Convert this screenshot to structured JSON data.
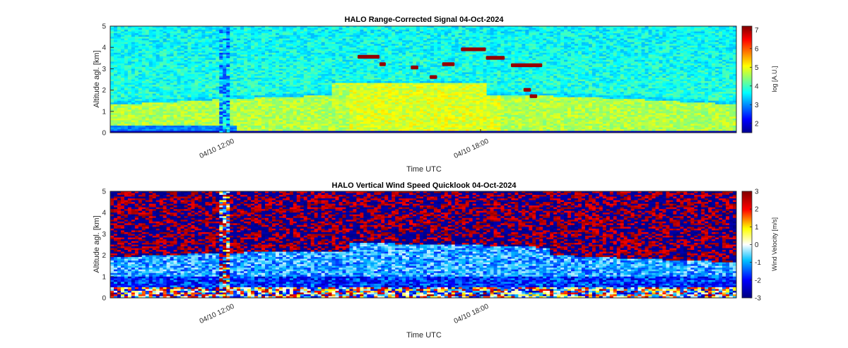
{
  "chart_data": [
    {
      "type": "heatmap",
      "title": "HALO Range-Corrected Signal 04-Oct-2024",
      "xlabel": "Time UTC",
      "ylabel": "Altitude agl. [km]",
      "ylim": [
        0,
        5
      ],
      "y_ticks": [
        "0",
        "1",
        "2",
        "3",
        "4",
        "5"
      ],
      "x_ticks": [
        "04/10 12:00",
        "04/10 18:00"
      ],
      "colorbar": {
        "label": "log [A.U.]",
        "range": [
          1.5,
          7.2
        ],
        "ticks": [
          "2",
          "3",
          "4",
          "5",
          "6",
          "7"
        ],
        "colormap": "jet"
      },
      "colormap_colors": [
        "#00008f",
        "#0000ff",
        "#00ffff",
        "#ffff00",
        "#ff0000",
        "#800000"
      ],
      "features": {
        "background_value": 4.0,
        "boundary_layer_value": 4.6,
        "boundary_layer_top_km": 1.8,
        "cloud_value": 7.0,
        "cloud_layer_km": [
          2.6,
          4.1
        ]
      }
    },
    {
      "type": "heatmap",
      "title": "HALO Vertical Wind Speed Quicklook 04-Oct-2024",
      "xlabel": "Time UTC",
      "ylabel": "Altitude agl. [km]",
      "ylim": [
        0,
        5
      ],
      "y_ticks": [
        "0",
        "1",
        "2",
        "3",
        "4",
        "5"
      ],
      "x_ticks": [
        "04/10 12:00",
        "04/10 18:00"
      ],
      "colorbar": {
        "label": "Wind Velocity [m/s]",
        "range": [
          -3,
          3
        ],
        "ticks": [
          "-3",
          "-2",
          "-1",
          "0",
          "1",
          "2",
          "3"
        ],
        "colormap": "blue-white-red"
      },
      "colormap_colors": [
        "#00007f",
        "#0000ff",
        "#00bfff",
        "#ffffff",
        "#ffff00",
        "#ff0000",
        "#7f0000"
      ],
      "features": {
        "noise_above_boundary_layer": true,
        "boundary_layer_top_km": 2.3,
        "boundary_layer_mean_velocity": -1.0
      }
    }
  ]
}
